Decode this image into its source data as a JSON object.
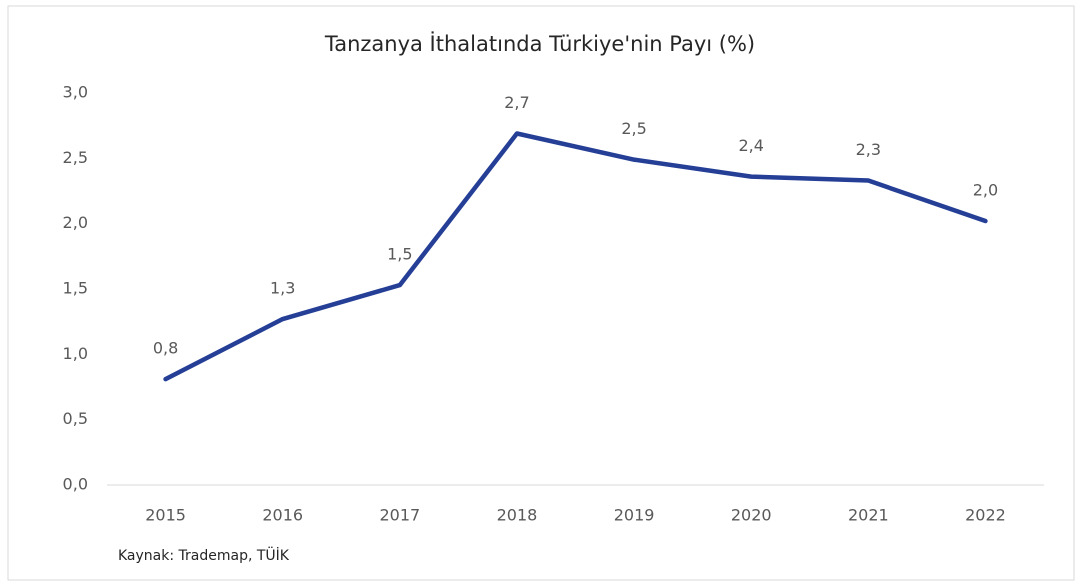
{
  "chart_data": {
    "type": "line",
    "title": "Tanzanya İthalatında Türkiye'nin Payı (%)",
    "source": "Kaynak: Trademap, TÜİK",
    "categories": [
      "2015",
      "2016",
      "2017",
      "2018",
      "2019",
      "2020",
      "2021",
      "2022"
    ],
    "values": [
      0.81,
      1.27,
      1.53,
      2.69,
      2.49,
      2.36,
      2.33,
      2.02
    ],
    "value_labels": [
      "0,8",
      "1,3",
      "1,5",
      "2,7",
      "2,5",
      "2,4",
      "2,3",
      "2,0"
    ],
    "color": "#253f97",
    "ylim": [
      0,
      3
    ],
    "yticks": [
      {
        "value": 0,
        "label": "0,0"
      },
      {
        "value": 0.5,
        "label": "0,5"
      },
      {
        "value": 1,
        "label": "1,0"
      },
      {
        "value": 1.5,
        "label": "1,5"
      },
      {
        "value": 2,
        "label": "2,0"
      },
      {
        "value": 2.5,
        "label": "2,5"
      },
      {
        "value": 3,
        "label": "3,0"
      }
    ],
    "grid": false
  }
}
